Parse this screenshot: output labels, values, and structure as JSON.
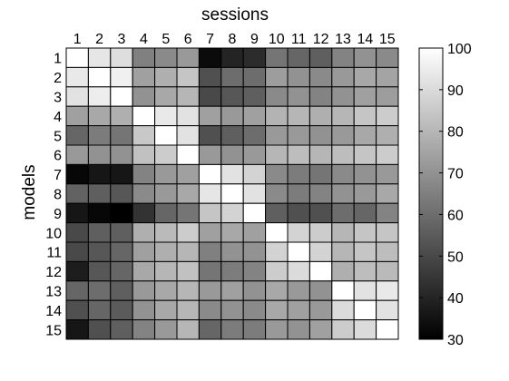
{
  "chart_data": {
    "type": "heatmap",
    "title": "",
    "xlabel": "sessions",
    "ylabel": "models",
    "x_categories": [
      "1",
      "2",
      "3",
      "4",
      "5",
      "6",
      "7",
      "8",
      "9",
      "10",
      "11",
      "12",
      "13",
      "14",
      "15"
    ],
    "y_categories": [
      "1",
      "2",
      "3",
      "4",
      "5",
      "6",
      "7",
      "8",
      "9",
      "10",
      "11",
      "12",
      "13",
      "14",
      "15"
    ],
    "colorscale": "gray",
    "clim": [
      30,
      100
    ],
    "colorbar_ticks": [
      30,
      40,
      50,
      60,
      70,
      80,
      90,
      100
    ],
    "values": [
      [
        100,
        93,
        91,
        65,
        68,
        72,
        33,
        40,
        42,
        62,
        58,
        56,
        66,
        70,
        68
      ],
      [
        94,
        100,
        96,
        74,
        78,
        84,
        52,
        60,
        60,
        73,
        70,
        68,
        72,
        76,
        75
      ],
      [
        92,
        95,
        100,
        70,
        76,
        80,
        50,
        54,
        56,
        68,
        70,
        66,
        70,
        74,
        73
      ],
      [
        74,
        76,
        78,
        100,
        94,
        92,
        74,
        72,
        74,
        79,
        80,
        78,
        80,
        84,
        86
      ],
      [
        58,
        64,
        62,
        85,
        100,
        92,
        52,
        56,
        60,
        72,
        72,
        70,
        72,
        76,
        78
      ],
      [
        72,
        70,
        70,
        83,
        86,
        100,
        72,
        70,
        72,
        80,
        82,
        80,
        82,
        84,
        86
      ],
      [
        32,
        36,
        36,
        66,
        72,
        74,
        100,
        92,
        88,
        68,
        64,
        62,
        68,
        70,
        72
      ],
      [
        57,
        56,
        54,
        68,
        72,
        76,
        93,
        100,
        92,
        68,
        64,
        66,
        70,
        72,
        76
      ],
      [
        36,
        32,
        30,
        44,
        58,
        62,
        84,
        88,
        100,
        56,
        52,
        52,
        60,
        58,
        66
      ],
      [
        50,
        56,
        56,
        78,
        81,
        86,
        74,
        76,
        74,
        100,
        88,
        86,
        80,
        84,
        84
      ],
      [
        50,
        54,
        58,
        74,
        78,
        80,
        65,
        70,
        70,
        88,
        100,
        88,
        80,
        84,
        82
      ],
      [
        38,
        54,
        58,
        76,
        80,
        83,
        62,
        64,
        66,
        86,
        90,
        100,
        78,
        82,
        81
      ],
      [
        58,
        60,
        56,
        72,
        76,
        80,
        72,
        74,
        70,
        76,
        72,
        70,
        100,
        92,
        94
      ],
      [
        52,
        58,
        55,
        70,
        76,
        80,
        68,
        70,
        68,
        76,
        74,
        72,
        90,
        100,
        92
      ],
      [
        36,
        52,
        56,
        66,
        72,
        80,
        58,
        64,
        64,
        72,
        70,
        74,
        86,
        90,
        100
      ]
    ]
  }
}
